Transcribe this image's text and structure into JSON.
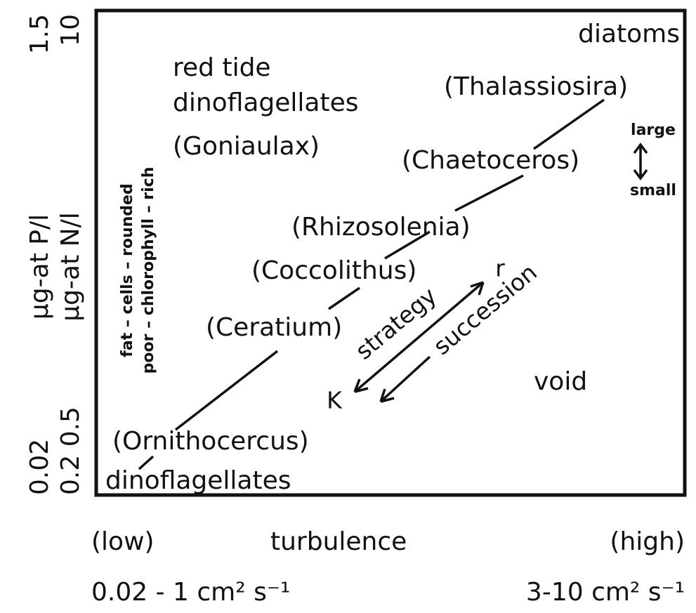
{
  "y_axis": {
    "p_label": "μg-at P/l",
    "n_label": "μg-at N/l",
    "p_high": "1.5",
    "n_high": "10",
    "p_low": "0.02",
    "n_low": "0.2 0.5"
  },
  "x_axis": {
    "low": "(low)",
    "label": "turbulence",
    "high": "(high)",
    "low_value": "0.02 - 1 cm² s⁻¹",
    "high_value": "3-10 cm² s⁻¹"
  },
  "groups": {
    "diatoms": "diatoms",
    "red_tide_1": "red tide",
    "red_tide_2": "dinoflagellates",
    "dinoflagellates": "dinoflagellates",
    "void": "void"
  },
  "organisms": [
    "(Thalassiosira)",
    "(Chaetoceros)",
    "(Goniaulax)",
    "(Rhizosolenia)",
    "(Coccolithus)",
    "(Ceratium)",
    "(Ornithocercus)"
  ],
  "cell_traits": {
    "line_1": "fat – cells – rounded",
    "line_2": "poor – chlorophyll – rich"
  },
  "size": {
    "large": "large",
    "small": "small"
  },
  "strategy": {
    "label": "strategy",
    "k": "K",
    "r": "r",
    "succession": "succession"
  }
}
